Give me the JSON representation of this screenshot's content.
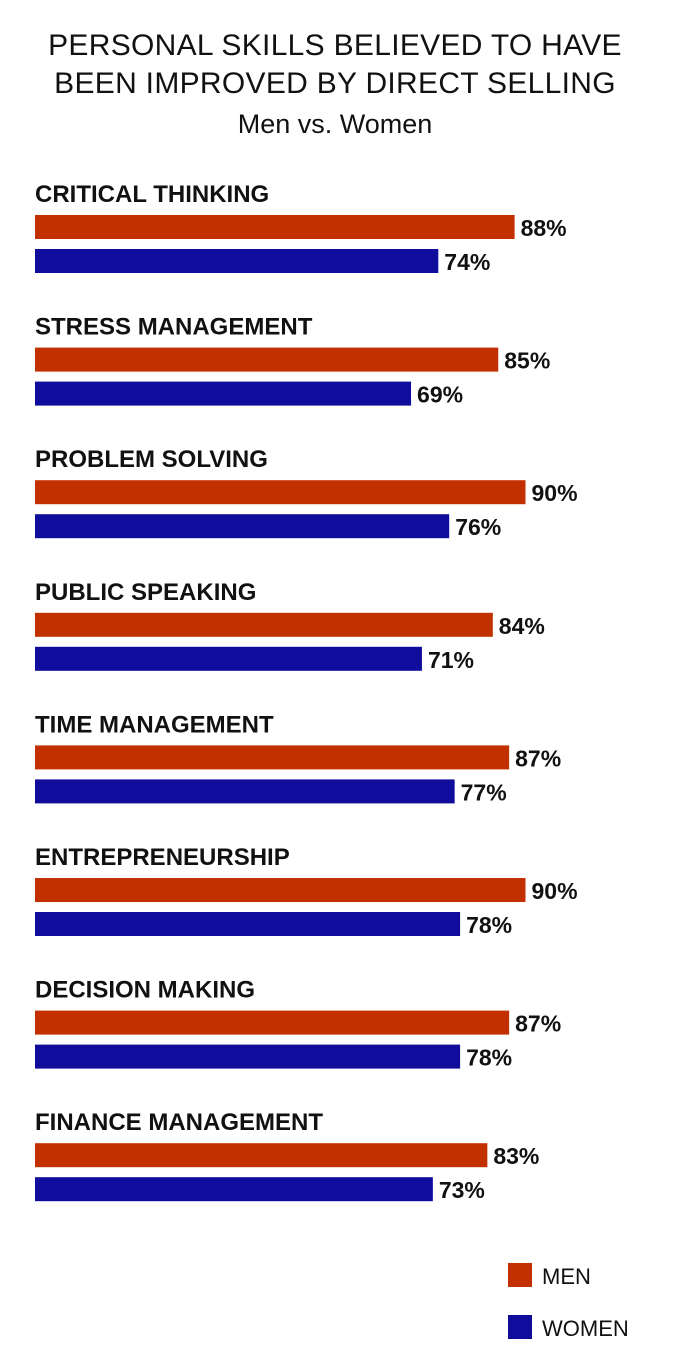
{
  "header": {
    "title_line1": "PERSONAL SKILLS BELIEVED TO HAVE",
    "title_line2": "BEEN IMPROVED BY DIRECT SELLING",
    "subtitle": "Men vs. Women"
  },
  "chart_data": {
    "type": "bar",
    "orientation": "horizontal",
    "title": "PERSONAL SKILLS BELIEVED TO HAVE BEEN IMPROVED BY DIRECT SELLING",
    "subtitle": "Men vs. Women",
    "categories": [
      "CRITICAL THINKING",
      "STRESS MANAGEMENT",
      "PROBLEM SOLVING",
      "PUBLIC SPEAKING",
      "TIME MANAGEMENT",
      "ENTREPRENEURSHIP",
      "DECISION MAKING",
      "FINANCE MANAGEMENT"
    ],
    "series": [
      {
        "name": "MEN",
        "color": "#c23000",
        "values": [
          88,
          85,
          90,
          84,
          87,
          90,
          87,
          83
        ]
      },
      {
        "name": "WOMEN",
        "color": "#100c9c",
        "values": [
          74,
          69,
          76,
          71,
          77,
          78,
          78,
          73
        ]
      }
    ],
    "value_suffix": "%",
    "xlim": [
      0,
      100
    ],
    "grid": false,
    "legend_position": "bottom-right"
  }
}
